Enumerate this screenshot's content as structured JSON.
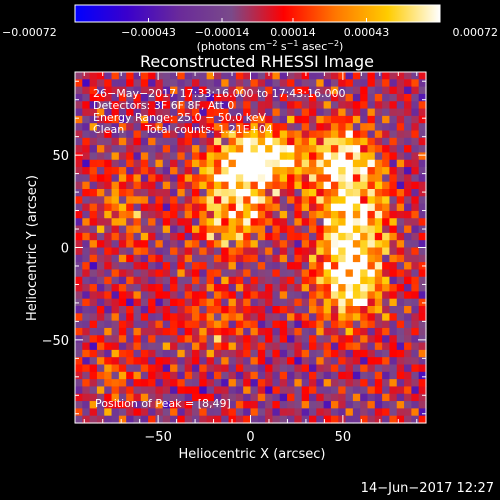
{
  "chart_data": {
    "type": "heatmap",
    "title": "Reconstructed RHESSI Image",
    "xlabel": "Heliocentric X (arcsec)",
    "ylabel": "Heliocentric Y (arcsec)",
    "xlim": [
      -95,
      95
    ],
    "ylim": [
      -95,
      95
    ],
    "x_ticks": [
      -50,
      0,
      50
    ],
    "y_ticks": [
      -50,
      0,
      50
    ],
    "x_tick_labels": [
      "−50",
      "0",
      "50"
    ],
    "y_tick_labels": [
      "−50",
      "0",
      "50"
    ],
    "colorbar": {
      "min": -0.00072,
      "max": 0.00072,
      "ticks": [
        -0.00072,
        -0.00043,
        -0.00014,
        0.00014,
        0.00043,
        0.00072
      ],
      "tick_labels": [
        "−0.00072",
        "−0.00043",
        "−0.00014",
        "0.00014",
        "0.00043",
        "0.00072"
      ],
      "units_prefix": "(photons cm",
      "units_exp1": "−2",
      "units_mid": " s",
      "units_exp2": "−1",
      "units_mid2": " asec",
      "units_exp3": "−2",
      "units_suffix": ")"
    },
    "annotations": {
      "line1": "26−May−2017 17:33:16.000 to 17:43:16.000",
      "line2": "Detectors: 3F 6F 8F, Att 0",
      "line3": "Energy Range: 25.0 − 50.0 keV",
      "line4_label": "Clean",
      "line4_counts": "Total counts: 1.21E+04",
      "peak": "Position of Peak = [8,49]"
    },
    "peak_position": [
      8,
      49
    ],
    "sources": [
      {
        "x": 8,
        "y": 49,
        "sx": 14,
        "sy": 11,
        "amp": 1.0
      },
      {
        "x": -10,
        "y": 28,
        "sx": 14,
        "sy": 20,
        "amp": 0.8
      },
      {
        "x": 55,
        "y": 10,
        "sx": 14,
        "sy": 26,
        "amp": 0.88
      },
      {
        "x": 48,
        "y": 48,
        "sx": 13,
        "sy": 13,
        "amp": 0.6
      },
      {
        "x": 52,
        "y": -22,
        "sx": 12,
        "sy": 15,
        "amp": 0.6
      },
      {
        "x": -68,
        "y": 22,
        "sx": 13,
        "sy": 16,
        "amp": 0.35
      },
      {
        "x": -72,
        "y": -68,
        "sx": 12,
        "sy": 12,
        "amp": 0.3
      },
      {
        "x": -18,
        "y": -40,
        "sx": 16,
        "sy": 13,
        "amp": 0.32
      }
    ],
    "colors": {
      "colorbar_stops": [
        "#0000ff",
        "#3a00cc",
        "#6a2a9a",
        "#7a4a8a",
        "#ff0000",
        "#ff7700",
        "#ffcc00",
        "#ffffff"
      ],
      "background": "#000000",
      "text": "#ffffff"
    }
  },
  "footer": {
    "timestamp": "14−Jun−2017 12:27"
  }
}
